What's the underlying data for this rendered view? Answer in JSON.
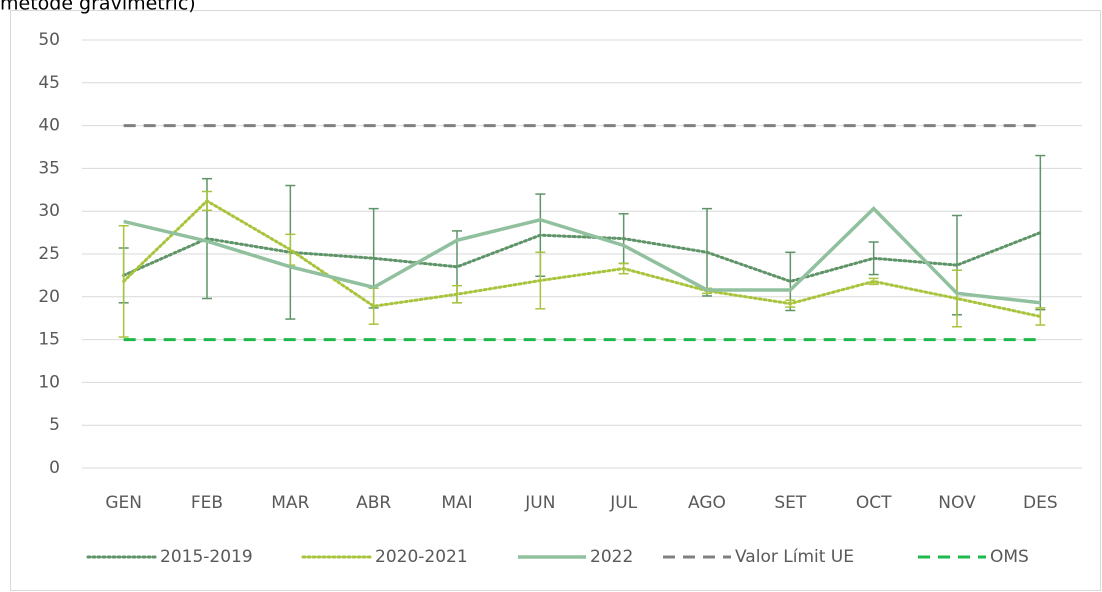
{
  "chart_data": {
    "type": "line",
    "title": "mètode gravimètric)",
    "categories": [
      "GEN",
      "FEB",
      "MAR",
      "ABR",
      "MAI",
      "JUN",
      "JUL",
      "AGO",
      "SET",
      "OCT",
      "NOV",
      "DES"
    ],
    "ylim": [
      0,
      50
    ],
    "yticks": [
      0,
      5,
      10,
      15,
      20,
      25,
      30,
      35,
      40,
      45,
      50
    ],
    "grid": true,
    "legend": "bottom",
    "series": [
      {
        "name": "2015-2019",
        "color": "#5e9467",
        "style": "dotted",
        "values": [
          22.5,
          26.8,
          25.2,
          24.5,
          23.5,
          27.2,
          26.8,
          25.2,
          21.8,
          24.5,
          23.7,
          27.5
        ],
        "errors": [
          3.2,
          7.0,
          7.8,
          5.8,
          4.2,
          4.8,
          2.9,
          5.1,
          3.4,
          1.9,
          5.8,
          9.0
        ]
      },
      {
        "name": "2020-2021",
        "color": "#a8c43c",
        "style": "dotted",
        "values": [
          21.8,
          31.2,
          25.5,
          18.9,
          20.3,
          21.9,
          23.3,
          20.7,
          19.2,
          21.8,
          19.8,
          17.7
        ],
        "errors": [
          6.5,
          1.1,
          1.8,
          2.1,
          1.0,
          3.3,
          0.6,
          0.3,
          0.4,
          0.35,
          3.3,
          1.0
        ]
      },
      {
        "name": "2022",
        "color": "#90c09d",
        "style": "solid",
        "values": [
          28.8,
          26.5,
          23.5,
          21.1,
          26.6,
          29.0,
          26.0,
          20.8,
          20.8,
          30.3,
          20.4,
          19.3
        ]
      },
      {
        "name": "Valor Límit UE",
        "color": "#808080",
        "style": "dashed",
        "values": [
          40,
          40,
          40,
          40,
          40,
          40,
          40,
          40,
          40,
          40,
          40,
          40
        ]
      },
      {
        "name": "OMS",
        "color": "#1fb84a",
        "style": "dashed",
        "values": [
          15,
          15,
          15,
          15,
          15,
          15,
          15,
          15,
          15,
          15,
          15,
          15
        ]
      }
    ]
  }
}
